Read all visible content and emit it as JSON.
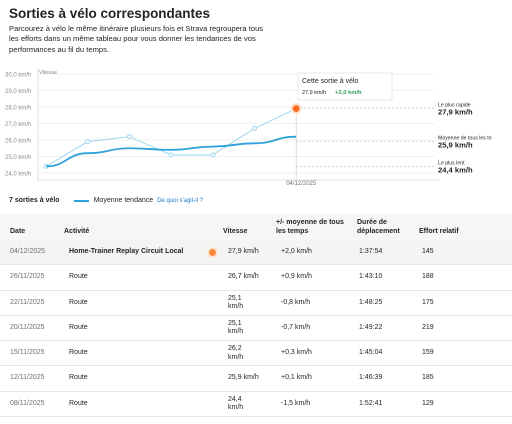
{
  "page": {
    "title": "Sorties à vélo correspondantes",
    "description": "Parcourez à vélo le même itinéraire plusieurs fois et Strava regroupera tous les efforts dans un même tableau pour vous donner les tendances de vos performances au fil du temps."
  },
  "chart_data": {
    "type": "line",
    "ylabel": "Vitesse",
    "y_ticks": [
      "30,0 km/h",
      "29,0 km/h",
      "28,0 km/h",
      "27,0 km/h",
      "26,0 km/h",
      "25,0 km/h",
      "24,0 km/h"
    ],
    "y_tick_values": [
      30,
      29,
      28,
      27,
      26,
      25,
      24
    ],
    "ylim": [
      24,
      30
    ],
    "x_label_shown": "04/12/2025",
    "series": [
      {
        "name": "Vitesse",
        "values": [
          24.4,
          25.9,
          26.2,
          25.1,
          25.1,
          26.7,
          27.9
        ],
        "color": "#9fd6f0"
      },
      {
        "name": "Moyenne tendance",
        "values": [
          24.4,
          25.2,
          25.5,
          25.4,
          25.6,
          25.8,
          26.2
        ],
        "color": "#2ea2d8"
      }
    ],
    "highlight_color": "#fc6b25",
    "reference_lines": [
      {
        "label": "Le plus rapide",
        "value_text": "27,9 km/h",
        "value": 27.9
      },
      {
        "label": "Moyenne de tous les te",
        "value_text": "25,9 km/h",
        "value": 25.9
      },
      {
        "label": "Le plus lent",
        "value_text": "24,4 km/h",
        "value": 24.4
      }
    ],
    "tooltip": {
      "title": "Cette sortie à vélo",
      "speed": "27,9 km/h",
      "delta": "+2,0 km/h",
      "delta_color": "#2f9e55"
    }
  },
  "summary": {
    "count": "7 sorties à vélo",
    "legend_label": "Moyenne tendance",
    "legend_link": "De quoi s'agit-il ?"
  },
  "table": {
    "headers": {
      "date": "Date",
      "activity": "Activité",
      "speed": "Vitesse",
      "delta": "+/- moyenne de tous les temps",
      "duration": "Durée de déplacement",
      "effort": "Effort relatif"
    },
    "rows": [
      {
        "date": "04/12/2025",
        "activity": "Home-Trainer Replay Circuit Local",
        "speed": "27,9 km/h",
        "delta": "+2,0 km/h",
        "duration": "1:37:54",
        "effort": "145",
        "highlight": true
      },
      {
        "date": "26/11/2025",
        "activity": "Route",
        "speed": "26,7 km/h",
        "delta": "+0,9 km/h",
        "duration": "1:43:10",
        "effort": "188"
      },
      {
        "date": "22/11/2025",
        "activity": "Route",
        "speed": "25,1 km/h",
        "delta": "-0,8 km/h",
        "duration": "1:48:25",
        "effort": "175"
      },
      {
        "date": "20/11/2025",
        "activity": "Route",
        "speed": "25,1 km/h",
        "delta": "-0,7 km/h",
        "duration": "1:49:22",
        "effort": "219"
      },
      {
        "date": "15/11/2025",
        "activity": "Route",
        "speed": "26,2 km/h",
        "delta": "+0,3 km/h",
        "duration": "1:45:04",
        "effort": "159"
      },
      {
        "date": "12/11/2025",
        "activity": "Route",
        "speed": "25,9 km/h",
        "delta": "+0,1 km/h",
        "duration": "1:46:39",
        "effort": "185"
      },
      {
        "date": "08/11/2025",
        "activity": "Route",
        "speed": "24,4 km/h",
        "delta": "-1,5 km/h",
        "duration": "1:52:41",
        "effort": "129"
      }
    ]
  }
}
